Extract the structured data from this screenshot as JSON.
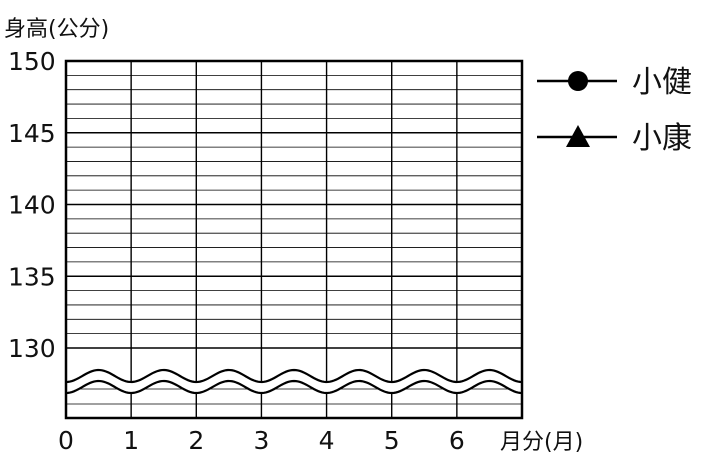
{
  "chart_data": {
    "type": "line",
    "ylabel": "身高(公分)",
    "xlabel": "月分(月)",
    "x_ticks": [
      "0",
      "1",
      "2",
      "3",
      "4",
      "5",
      "6"
    ],
    "y_ticks": [
      "150",
      "145",
      "140",
      "135",
      "130"
    ],
    "xlim": [
      0,
      7
    ],
    "ylim": [
      130,
      150
    ],
    "y_minor_step": 1,
    "y_major_step": 5,
    "axis_break": "wavy break below 130",
    "grid": true,
    "legend_position": "right",
    "series": [
      {
        "name": "小健",
        "marker": "circle",
        "values": []
      },
      {
        "name": "小康",
        "marker": "triangle",
        "values": []
      }
    ]
  },
  "colors": {
    "line": "#000000",
    "background": "#ffffff"
  }
}
